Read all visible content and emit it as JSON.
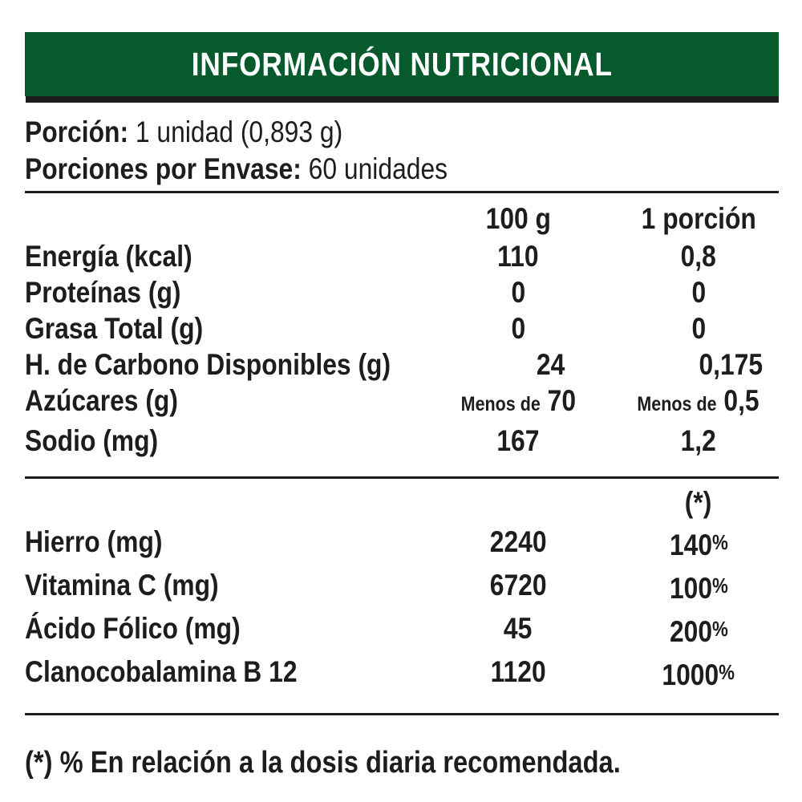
{
  "header": {
    "title": "INFORMACIÓN NUTRICIONAL",
    "bar_color": "#075a2b",
    "shadow_color": "#1d1d1d",
    "text_color": "#ffffff"
  },
  "serving": {
    "portion_label": "Porción:",
    "portion_value": "1 unidad (0,893 g)",
    "per_package_label": "Porciones por Envase:",
    "per_package_value": "60 unidades"
  },
  "nutrients": {
    "columns": {
      "per_100g": "100 g",
      "per_portion": "1 porción"
    },
    "rows": [
      {
        "label": "Energía (kcal)",
        "per_100g": "110",
        "per_portion": "0,8"
      },
      {
        "label": "Proteínas (g)",
        "per_100g": "0",
        "per_portion": "0"
      },
      {
        "label": "Grasa Total (g)",
        "per_100g": "0",
        "per_portion": "0"
      },
      {
        "label": "H. de Carbono Disponibles (g)",
        "per_100g": "24",
        "per_portion": "0,175"
      },
      {
        "label": "Azúcares (g)",
        "per_100g_prefix": "Menos de",
        "per_100g": "70",
        "per_portion_prefix": "Menos de",
        "per_portion": "0,5"
      },
      {
        "label": "Sodio (mg)",
        "per_100g": "167",
        "per_portion": "1,2"
      }
    ]
  },
  "micronutrients": {
    "percent_column_header": "(*)",
    "rows": [
      {
        "label": "Hierro (mg)",
        "per_100g": "2240",
        "percent_value": "140",
        "percent_sign": "%"
      },
      {
        "label": "Vitamina C (mg)",
        "per_100g": "6720",
        "percent_value": "100",
        "percent_sign": "%"
      },
      {
        "label": "Ácido Fólico (mg)",
        "per_100g": "45",
        "percent_value": "200",
        "percent_sign": "%"
      },
      {
        "label": "Clanocobalamina B 12",
        "per_100g": "1120",
        "percent_value": "1000",
        "percent_sign": "%"
      }
    ]
  },
  "footnote": "(*) % En relación a la dosis diaria recomendada."
}
